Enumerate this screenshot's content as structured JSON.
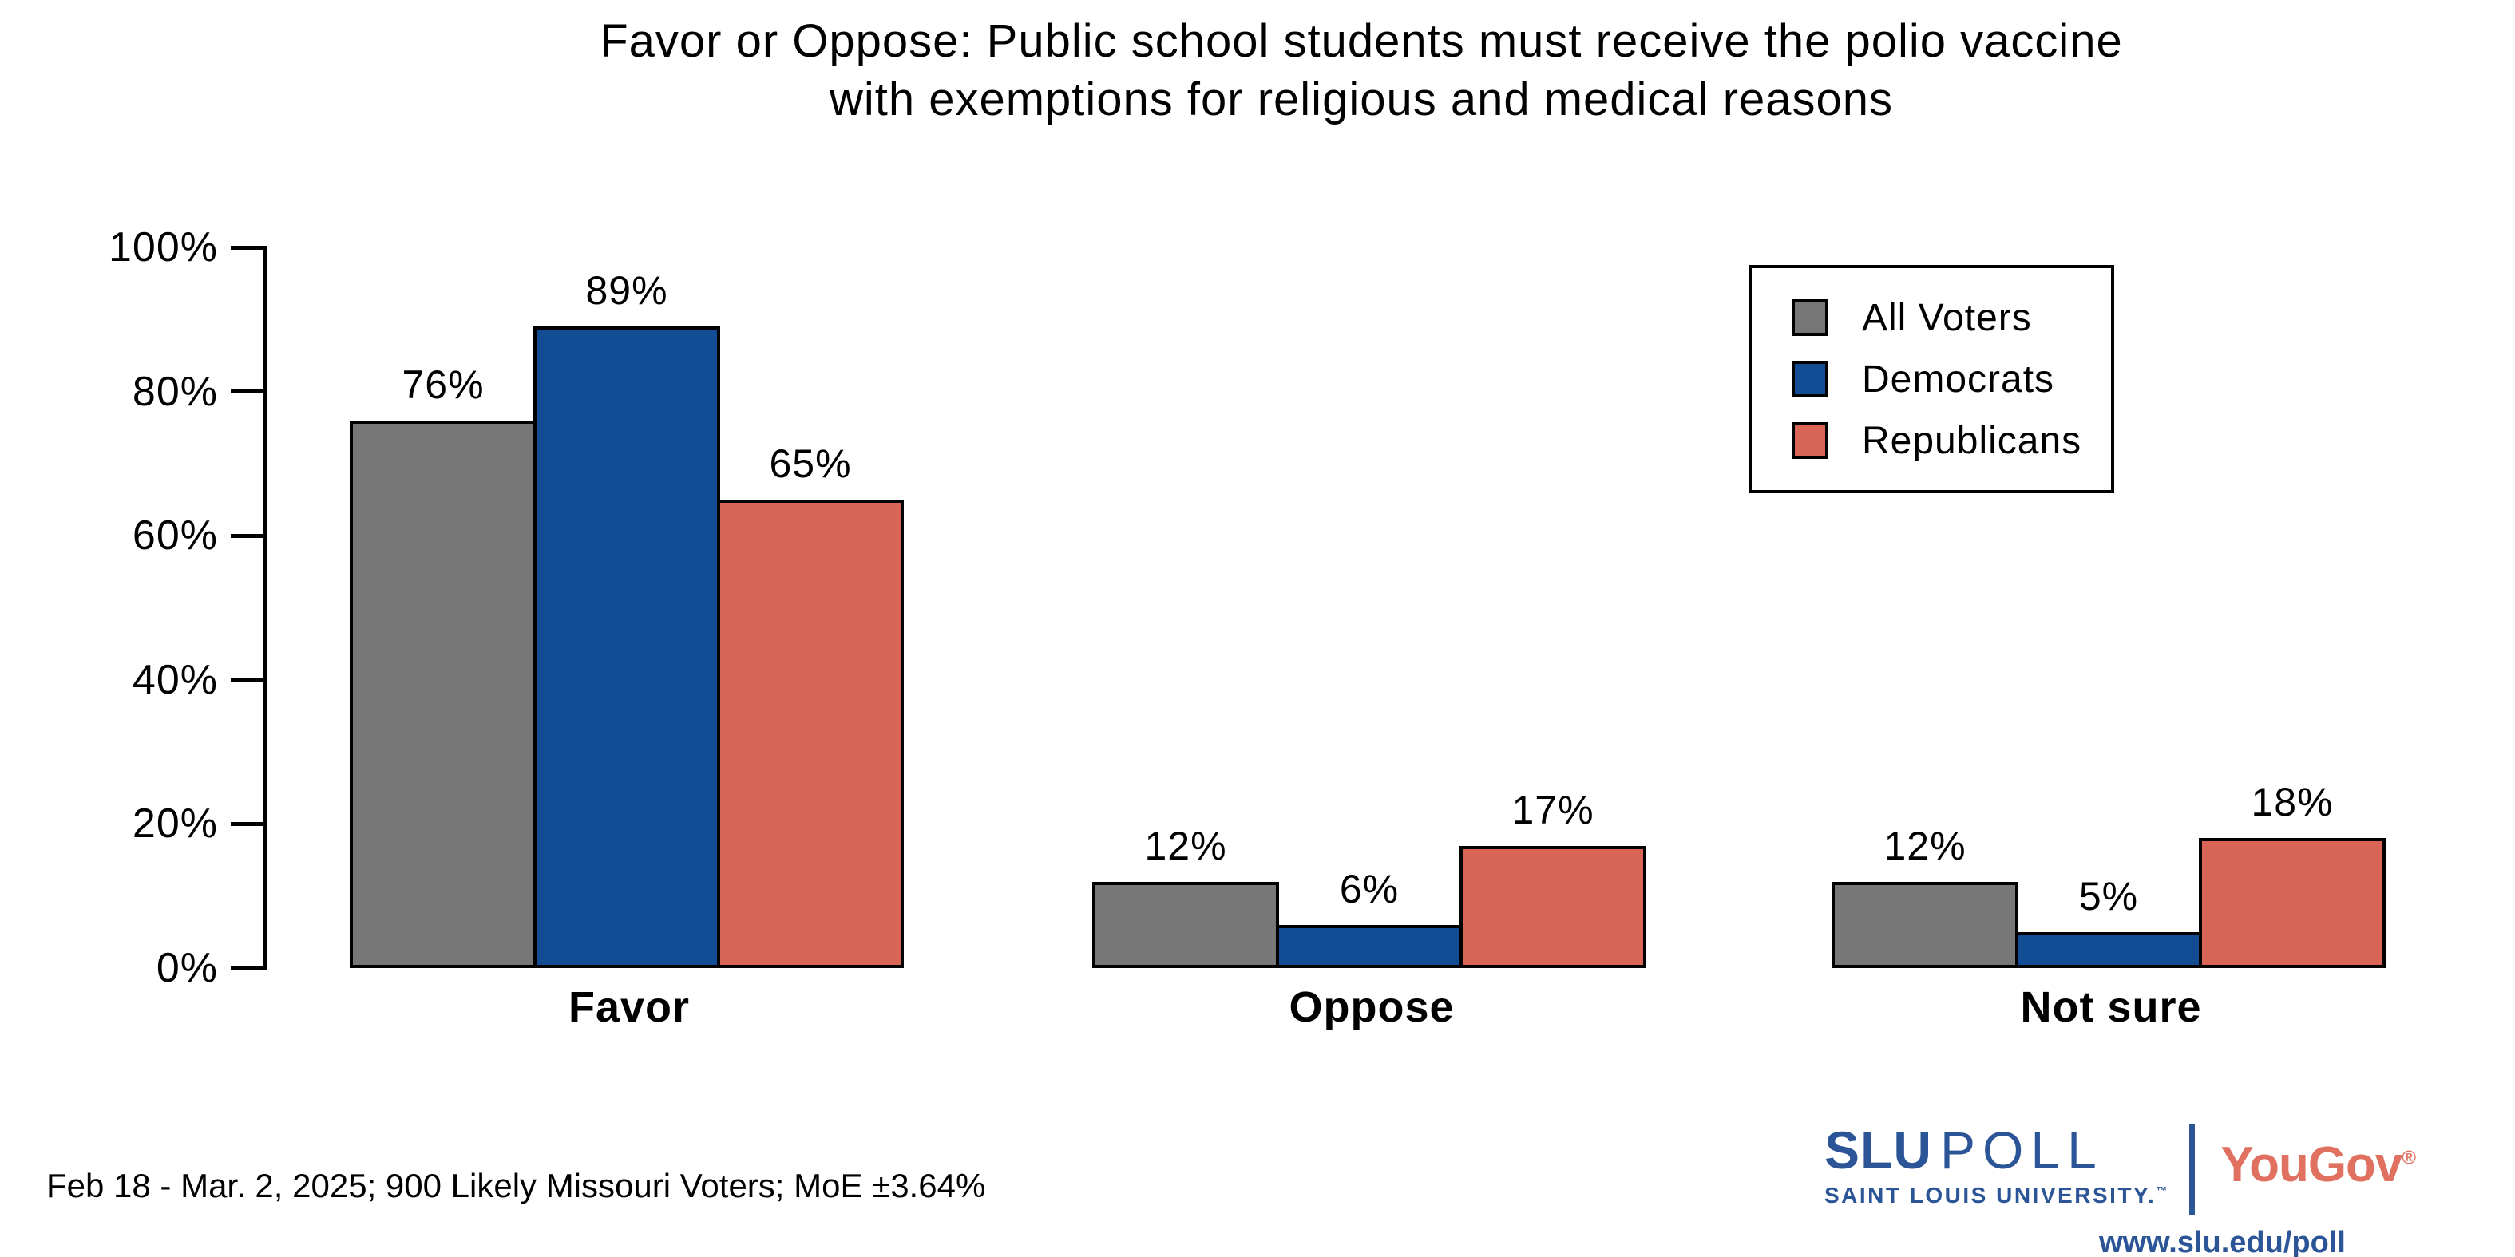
{
  "title": {
    "line1": "Favor or Oppose: Public school students must receive the polio vaccine",
    "line2": "with exemptions for religious and medical reasons"
  },
  "chart_data": {
    "type": "bar",
    "title": "Favor or Oppose: Public school students must receive the polio vaccine with exemptions for religious and medical reasons",
    "categories": [
      "Favor",
      "Oppose",
      "Not sure"
    ],
    "series": [
      {
        "name": "All Voters",
        "color": "#777777",
        "values": [
          76,
          12,
          12
        ],
        "labels": [
          "76%",
          "12%",
          "12%"
        ]
      },
      {
        "name": "Democrats",
        "color": "#114C94",
        "values": [
          89,
          6,
          5
        ],
        "labels": [
          "89%",
          "6%",
          "5%"
        ]
      },
      {
        "name": "Republicans",
        "color": "#D96556",
        "values": [
          65,
          17,
          18
        ],
        "labels": [
          "65%",
          "17%",
          "18%"
        ]
      }
    ],
    "xlabel": "",
    "ylabel": "",
    "ylim": [
      0,
      100
    ],
    "ytick_values": [
      0,
      20,
      40,
      60,
      80,
      100
    ],
    "ytick_labels": [
      "0%",
      "20%",
      "40%",
      "60%",
      "80%",
      "100%"
    ],
    "grid": false,
    "legend_position": "top-right",
    "bar_outline_color": "#000000"
  },
  "footnote": "Feb 18 - Mar. 2, 2025; 900 Likely Missouri Voters; MoE ±3.64%",
  "branding": {
    "slu": "SLU",
    "poll": "POLL",
    "university": "SAINT LOUIS UNIVERSITY.",
    "trademark": "™",
    "yougov": "YouGov",
    "registered": "®",
    "url": "www.slu.edu/poll",
    "slu_blue": "#2B5597",
    "yougov_red": "#E0705F"
  }
}
